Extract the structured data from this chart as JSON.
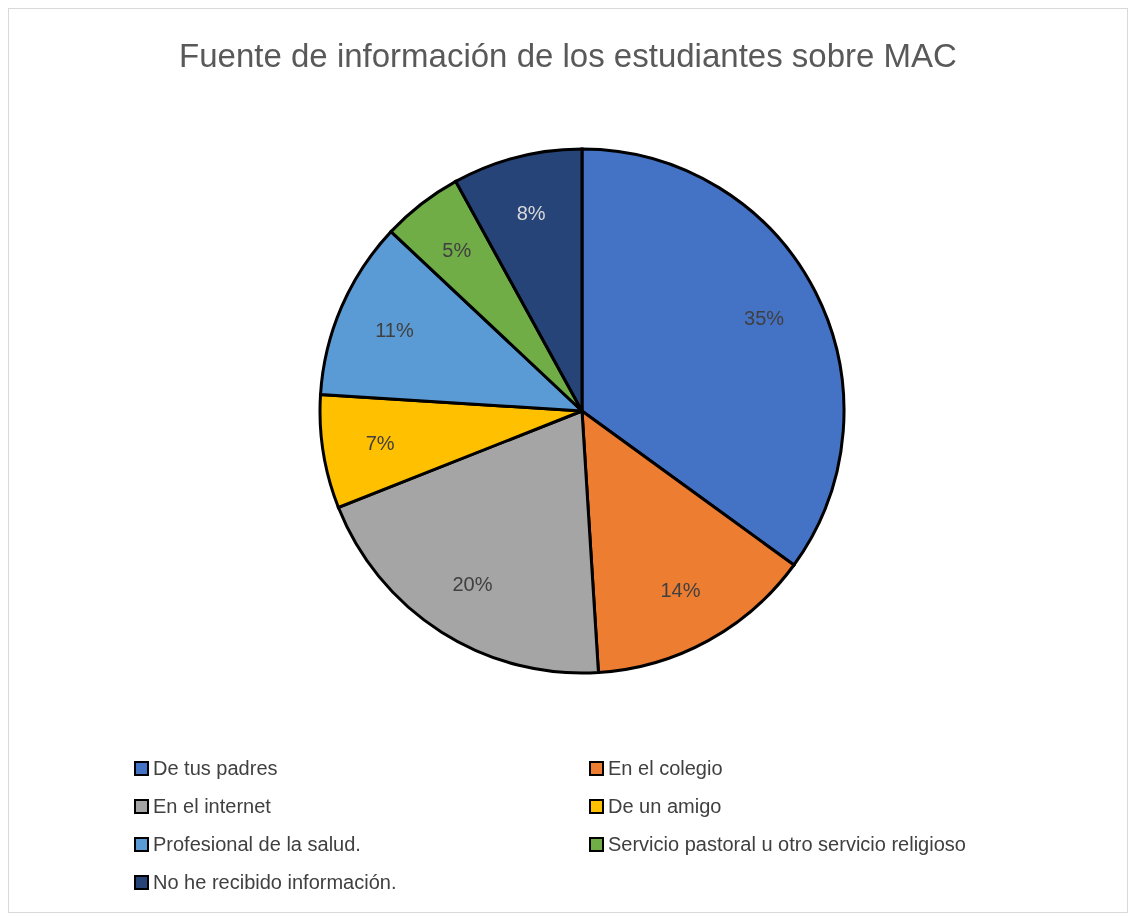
{
  "chart_data": {
    "type": "pie",
    "title": "Fuente de información de los estudiantes sobre MAC",
    "categories": [
      "De tus padres",
      "En el colegio",
      "En el internet",
      "De un amigo",
      "Profesional de la salud.",
      "Servicio pastoral u otro servicio religioso",
      "No he recibido información."
    ],
    "values": [
      35,
      14,
      20,
      7,
      11,
      5,
      8
    ],
    "colors": [
      "#4472c4",
      "#ed7d31",
      "#a5a5a5",
      "#ffc000",
      "#5b9bd5",
      "#70ad47",
      "#264478"
    ],
    "value_labels": [
      "35%",
      "14%",
      "20%",
      "7%",
      "11%",
      "5%",
      "8%"
    ],
    "legend": "bottom"
  }
}
